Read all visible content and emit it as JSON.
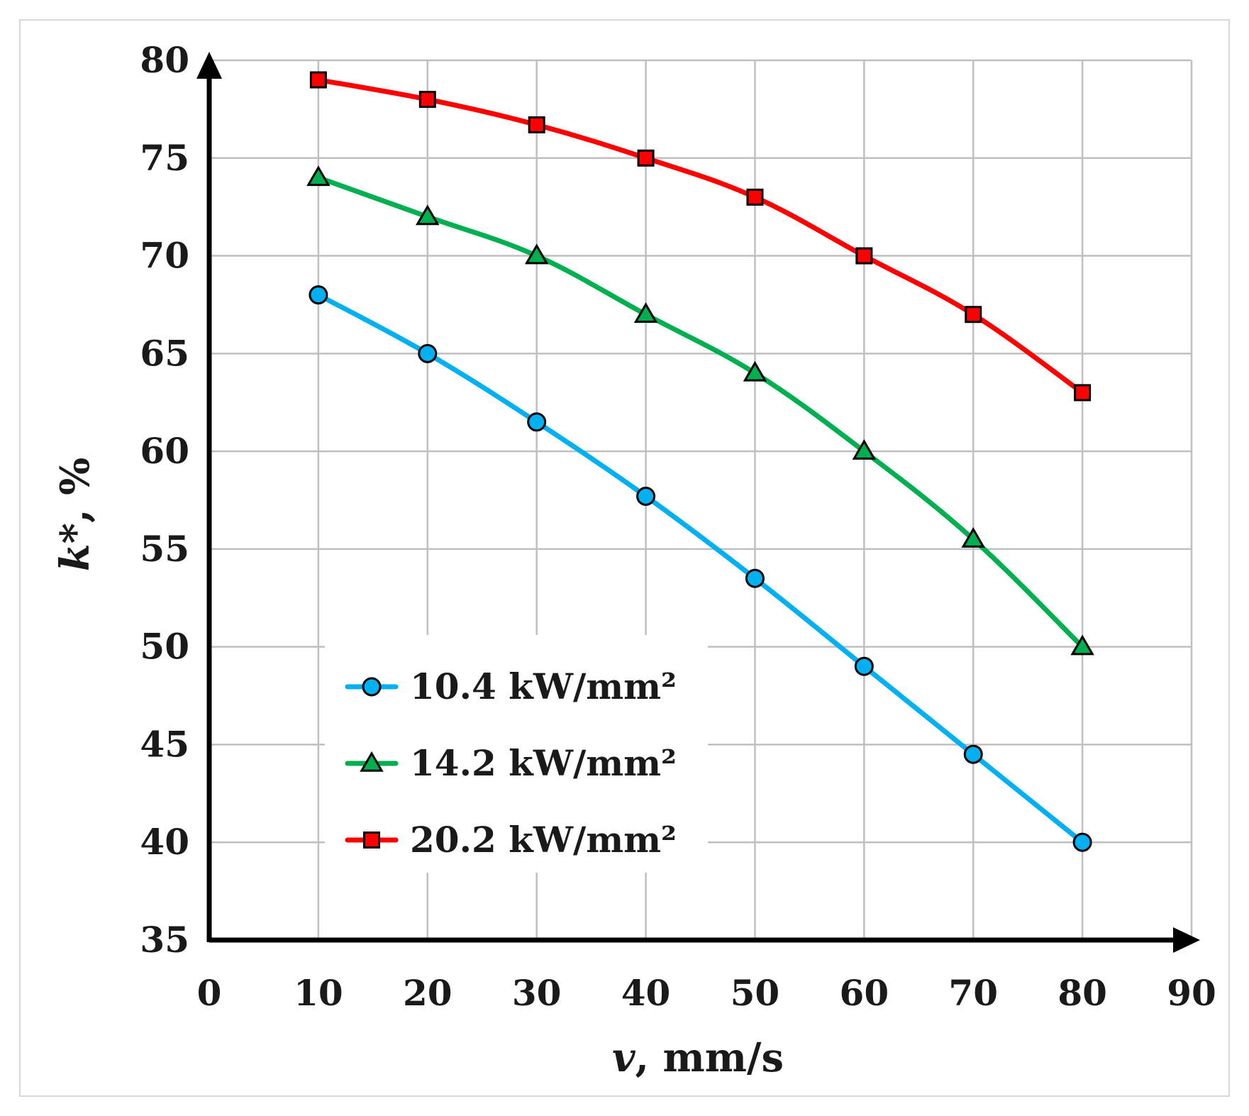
{
  "chart_data": {
    "type": "line",
    "title": "",
    "xlabel": "v, mm/s",
    "xlabel_var": "v",
    "xlabel_unit": ", mm/s",
    "ylabel": "k*, %",
    "ylabel_var": "k*",
    "ylabel_unit": ", %",
    "xlim": [
      0,
      90
    ],
    "ylim": [
      35,
      80
    ],
    "xticks": [
      0,
      10,
      20,
      30,
      40,
      50,
      60,
      70,
      80,
      90
    ],
    "yticks": [
      35,
      40,
      45,
      50,
      55,
      60,
      65,
      70,
      75,
      80
    ],
    "grid": true,
    "legend_position": "lower-left",
    "x": [
      10,
      20,
      30,
      40,
      50,
      60,
      70,
      80
    ],
    "series": [
      {
        "name": "10.4 kW/mm²",
        "marker": "circle",
        "color": "#00B0F0",
        "marker_color": "#00B0F0",
        "values": [
          68,
          65,
          61.5,
          57.7,
          53.5,
          49,
          44.5,
          40
        ]
      },
      {
        "name": "14.2 kW/mm²",
        "marker": "triangle",
        "color": "#00B050",
        "marker_color": "#00B050",
        "values": [
          74,
          72,
          70,
          67,
          64,
          60,
          55.5,
          50
        ]
      },
      {
        "name": "20.2 kW/mm²",
        "marker": "square",
        "color": "#FF0000",
        "marker_color": "#FF0000",
        "values": [
          79,
          78,
          76.7,
          75,
          73,
          70,
          67,
          63
        ]
      }
    ]
  }
}
